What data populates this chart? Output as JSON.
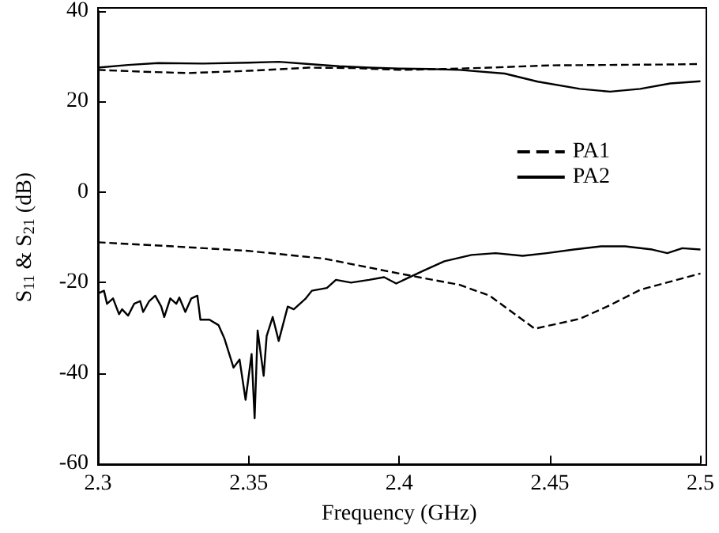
{
  "chart_data": {
    "type": "line",
    "xlabel": "Frequency (GHz)",
    "ylabel": "S$_{11}$ & S$_{21}$ (dB)",
    "xlim": [
      2.3,
      2.5
    ],
    "xticks": [
      2.3,
      2.35,
      2.4,
      2.45,
      2.5
    ],
    "ylim": [
      -60,
      40
    ],
    "yticks": [
      -60,
      -40,
      -20,
      0,
      20,
      40
    ],
    "grid": false,
    "legend": "right",
    "marker": "none",
    "series": [
      {
        "name": "PA1",
        "color": "#000000",
        "line_style": "dashed",
        "x": [
          2.3,
          2.315,
          2.33,
          2.35,
          2.37,
          2.385,
          2.4,
          2.415,
          2.43,
          2.45,
          2.47,
          2.49,
          2.5,
          null,
          2.3,
          2.325,
          2.35,
          2.375,
          2.4,
          2.42,
          2.43,
          2.445,
          2.46,
          2.47,
          2.48,
          2.5
        ],
        "values": [
          27,
          26.6,
          26.3,
          26.8,
          27.5,
          27.4,
          27,
          27.2,
          27.5,
          28,
          28.1,
          28.2,
          28.3,
          null,
          -11.1,
          -12,
          -13,
          -14.7,
          -18,
          -20.5,
          -22.9,
          -30.2,
          -28,
          -25,
          -21.6,
          -18
        ]
      },
      {
        "name": "PA2",
        "color": "#000000",
        "line_style": "solid",
        "x": [
          2.3,
          2.31,
          2.32,
          2.335,
          2.35,
          2.36,
          2.37,
          2.38,
          2.39,
          2.4,
          2.41,
          2.42,
          2.435,
          2.446,
          2.46,
          2.47,
          2.48,
          2.49,
          2.5,
          null,
          2.3,
          2.302,
          2.303,
          2.305,
          2.307,
          2.308,
          2.31,
          2.312,
          2.314,
          2.315,
          2.317,
          2.319,
          2.321,
          2.322,
          2.324,
          2.326,
          2.327,
          2.329,
          2.331,
          2.333,
          2.334,
          2.337,
          2.34,
          2.342,
          2.345,
          2.347,
          2.349,
          2.351,
          2.352,
          2.353,
          2.355,
          2.356,
          2.358,
          2.36,
          2.363,
          2.365,
          2.369,
          2.371,
          2.376,
          2.379,
          2.384,
          2.39,
          2.395,
          2.399,
          2.408,
          2.415,
          2.424,
          2.432,
          2.441,
          2.449,
          2.458,
          2.467,
          2.475,
          2.484,
          2.489,
          2.494,
          2.5
        ],
        "values": [
          27.5,
          28.1,
          28.5,
          28.4,
          28.6,
          28.8,
          28.3,
          27.8,
          27.5,
          27.3,
          27.2,
          27,
          26.2,
          24.4,
          22.8,
          22.2,
          22.8,
          24,
          24.5,
          null,
          -22.4,
          -21.8,
          -24.7,
          -23.5,
          -27,
          -25.9,
          -27.3,
          -24.7,
          -24.1,
          -26.5,
          -24.1,
          -22.9,
          -25.3,
          -27.6,
          -23.5,
          -24.7,
          -23.3,
          -26.5,
          -23.5,
          -22.9,
          -28.2,
          -28.2,
          -29.4,
          -32.4,
          -38.8,
          -37,
          -45.9,
          -35.8,
          -50,
          -30.6,
          -40.6,
          -31.8,
          -27.6,
          -32.9,
          -25.3,
          -25.9,
          -23.5,
          -21.8,
          -21.2,
          -19.4,
          -20,
          -19.4,
          -18.8,
          -20.2,
          -17.4,
          -15.3,
          -13.9,
          -13.5,
          -14.1,
          -13.5,
          -12.7,
          -12,
          -12,
          -12.7,
          -13.5,
          -12.4,
          -12.7
        ]
      }
    ]
  }
}
